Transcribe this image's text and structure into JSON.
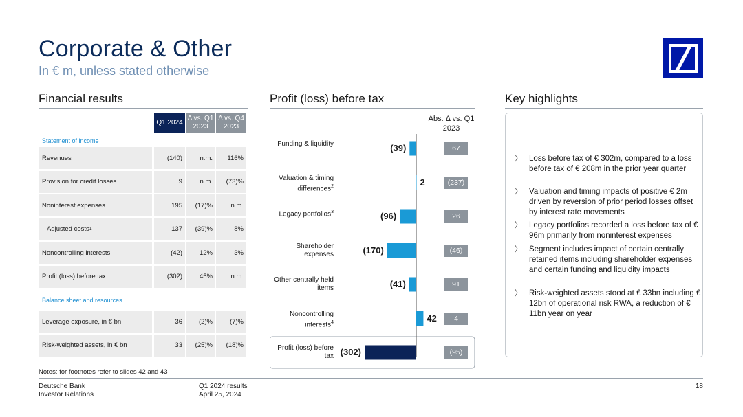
{
  "page": {
    "title": "Corporate & Other",
    "subtitle": "In € m, unless stated otherwise"
  },
  "financial_results": {
    "heading": "Financial results",
    "columns": [
      "Q1 2024",
      "Δ vs. Q1 2023",
      "Δ vs. Q4 2023"
    ],
    "section1": "Statement of income",
    "rows1": [
      {
        "label": "Revenues",
        "v": [
          "(140)",
          "n.m.",
          "116%"
        ]
      },
      {
        "label": "Provision for credit losses",
        "v": [
          "9",
          "n.m.",
          "(73)%"
        ]
      },
      {
        "label": "Noninterest expenses",
        "v": [
          "195",
          "(17)%",
          "n.m."
        ]
      },
      {
        "label": "Adjusted costs",
        "sup": "1",
        "v": [
          "137",
          "(39)%",
          "8%"
        ]
      },
      {
        "label": "Noncontrolling interests",
        "v": [
          "(42)",
          "12%",
          "3%"
        ]
      },
      {
        "label": "Profit (loss) before tax",
        "v": [
          "(302)",
          "45%",
          "n.m."
        ]
      }
    ],
    "section2": "Balance sheet and resources",
    "rows2": [
      {
        "label": "Leverage exposure, in € bn",
        "v": [
          "36",
          "(2)%",
          "(7)%"
        ]
      },
      {
        "label": "Risk-weighted assets, in € bn",
        "v": [
          "33",
          "(25)%",
          "(18)%"
        ]
      }
    ]
  },
  "profit_chart": {
    "heading": "Profit (loss) before tax",
    "delta_header": "Abs. Δ vs. Q1 2023",
    "items": [
      {
        "label": "Funding & liquidity",
        "sup": "",
        "value": -39,
        "value_label": "(39)",
        "delta": "67",
        "color": "#1a9ad6"
      },
      {
        "label": "Valuation & timing differences",
        "sup": "2",
        "value": 2,
        "value_label": "2",
        "delta": "(237)",
        "color": "#1a9ad6"
      },
      {
        "label": "Legacy portfolios",
        "sup": "3",
        "value": -96,
        "value_label": "(96)",
        "delta": "26",
        "color": "#1a9ad6"
      },
      {
        "label": "Shareholder expenses",
        "sup": "",
        "value": -170,
        "value_label": "(170)",
        "delta": "(46)",
        "color": "#1a9ad6"
      },
      {
        "label": "Other centrally held items",
        "sup": "",
        "value": -41,
        "value_label": "(41)",
        "delta": "91",
        "color": "#1a9ad6"
      },
      {
        "label": "Noncontrolling interests",
        "sup": "4",
        "value": 42,
        "value_label": "42",
        "delta": "4",
        "color": "#1a9ad6"
      },
      {
        "label": "Profit (loss) before tax",
        "sup": "",
        "value": -302,
        "value_label": "(302)",
        "delta": "(95)",
        "color": "#0b2358"
      }
    ]
  },
  "key_highlights": {
    "heading": "Key highlights",
    "bullets": [
      "Loss before tax of € 302m, compared to a loss before tax of € 208m in the prior year quarter",
      "Valuation and timing impacts of positive € 2m driven by reversion of prior period losses offset by interest rate movements",
      "Legacy portfolios recorded a loss before tax of € 96m primarily from noninterest expenses",
      "Segment includes impact of certain centrally retained items including shareholder expenses and certain funding and liquidity impacts",
      "Risk-weighted assets stood at € 33bn including € 12bn of operational risk RWA, a reduction of € 11bn year on year"
    ]
  },
  "notes": "Notes: for footnotes refer to slides 42 and 43",
  "footer": {
    "company": "Deutsche Bank",
    "dept": "Investor Relations",
    "report": "Q1 2024 results",
    "date": "April 25, 2024",
    "page": "18"
  },
  "colors": {
    "navy": "#0b2358",
    "blue": "#1a9ad6",
    "grey": "#8c949c",
    "logo": "#0018a8"
  }
}
